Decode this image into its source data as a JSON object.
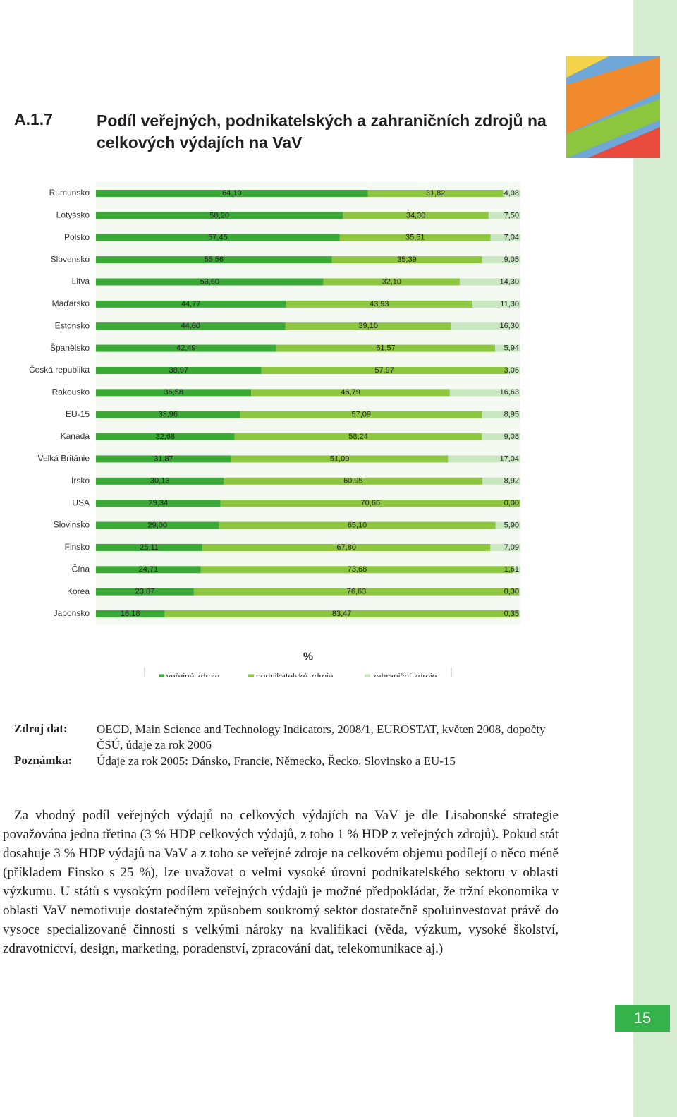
{
  "header": {
    "number": "A.1.7",
    "title": "Podíl veřejných, podnikatelských a zahraničních zdrojů na celkových výdajích na VaV"
  },
  "chart_data": {
    "type": "stacked-bar-horizontal",
    "x_label": "%",
    "xlim": [
      0,
      100
    ],
    "categories": [
      "Rumunsko",
      "Lotyšsko",
      "Polsko",
      "Slovensko",
      "Litva",
      "Maďarsko",
      "Estonsko",
      "Španělsko",
      "Česká republika",
      "Rakousko",
      "EU-15",
      "Kanada",
      "Velká Británie",
      "Irsko",
      "USA",
      "Slovinsko",
      "Finsko",
      "Čína",
      "Korea",
      "Japonsko"
    ],
    "legend": "bottom",
    "series": [
      {
        "name": "veřejné zdroje",
        "color": "#3aa935",
        "values": [
          64.1,
          58.2,
          57.45,
          55.56,
          53.6,
          44.77,
          44.6,
          42.49,
          38.97,
          36.58,
          33.96,
          32.68,
          31.87,
          30.13,
          29.34,
          29.0,
          25.11,
          24.71,
          23.07,
          16.18
        ],
        "value_labels": [
          "64,10",
          "58,20",
          "57,45",
          "55,56",
          "53,60",
          "44,77",
          "44,60",
          "42,49",
          "38,97",
          "36,58",
          "33,96",
          "32,68",
          "31,87",
          "30,13",
          "29,34",
          "29,00",
          "25,11",
          "24,71",
          "23,07",
          "16,18"
        ]
      },
      {
        "name": "podnikatelské zdroje",
        "color": "#8dc63f",
        "values": [
          31.82,
          34.3,
          35.51,
          35.39,
          32.1,
          43.93,
          39.1,
          51.57,
          57.97,
          46.79,
          57.09,
          58.24,
          51.09,
          60.95,
          70.66,
          65.1,
          67.8,
          73.68,
          76.63,
          83.47
        ],
        "value_labels": [
          "31,82",
          "34,30",
          "35,51",
          "35,39",
          "32,10",
          "43,93",
          "39,10",
          "51,57",
          "57,97",
          "46,79",
          "57,09",
          "58,24",
          "51,09",
          "60,95",
          "70,66",
          "65,10",
          "67,80",
          "73,68",
          "76,63",
          "83,47"
        ]
      },
      {
        "name": "zahraniční zdroje",
        "color": "#c9e7c1",
        "values": [
          4.08,
          7.5,
          7.04,
          9.05,
          14.3,
          11.3,
          16.3,
          5.94,
          3.06,
          16.63,
          8.95,
          9.08,
          17.04,
          8.92,
          0.0,
          5.9,
          7.09,
          1.61,
          0.3,
          0.35
        ],
        "value_labels": [
          "4,08",
          "7,50",
          "7,04",
          "9,05",
          "14,30",
          "11,30",
          "16,30",
          "5,94",
          "3,06",
          "16,63",
          "8,95",
          "9,08",
          "17,04",
          "8,92",
          "0,00",
          "5,90",
          "7,09",
          "1,61",
          "0,30",
          "0,35"
        ]
      }
    ]
  },
  "source": {
    "label": "Zdroj dat:",
    "text": "OECD, Main Science and Technology Indicators, 2008/1, EUROSTAT, květen 2008, dopočty ČSÚ, údaje za rok 2006"
  },
  "note": {
    "label": "Poznámka:",
    "text": "Údaje za rok 2005: Dánsko, Francie, Německo, Řecko, Slovinsko a EU-15"
  },
  "paragraph": "Za vhodný podíl veřejných výdajů na celkových výdajích na VaV je dle Lisabonské strategie považována jedna třetina (3 % HDP celkových výdajů, z toho 1 % HDP z veřejných zdrojů). Pokud stát dosahuje 3 % HDP výdajů na VaV a z toho se veřejné zdroje na celkovém objemu podílejí o něco méně (příkladem Finsko s 25 %), lze uvažovat o velmi vysoké úrovni podnikatelského sektoru v oblasti výzkumu. U států s vysokým podílem veřejných výdajů je možné předpokládat, že tržní ekonomika v oblasti VaV nemotivuje dostatečným způsobem soukromý sektor dostatečně spoluinvestovat právě do vysoce specializované činnosti s velkými nároky na kvalifikaci (věda, výzkum, vysoké školství, zdravotnictví, design, marketing, poradenství, zpracování dat, telekomunikace aj.)",
  "page_number": "15"
}
